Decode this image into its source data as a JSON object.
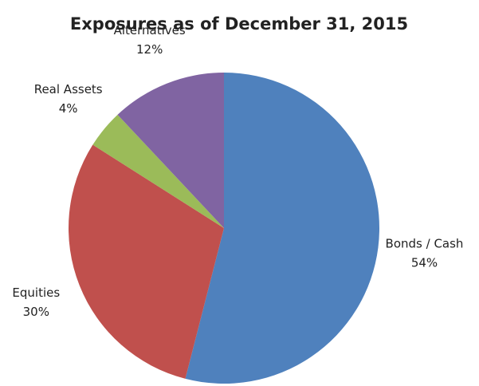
{
  "chart_data": {
    "type": "pie",
    "title": "Exposures as of December 31, 2015",
    "categories": [
      "Bonds / Cash",
      "Equities",
      "Real Assets",
      "Alternatives"
    ],
    "values": [
      54,
      30,
      4,
      12
    ],
    "value_labels": [
      "54%",
      "30%",
      "4%",
      "12%"
    ],
    "colors": [
      "#4f81bd",
      "#c0504d",
      "#9bbb59",
      "#8064a2"
    ]
  }
}
